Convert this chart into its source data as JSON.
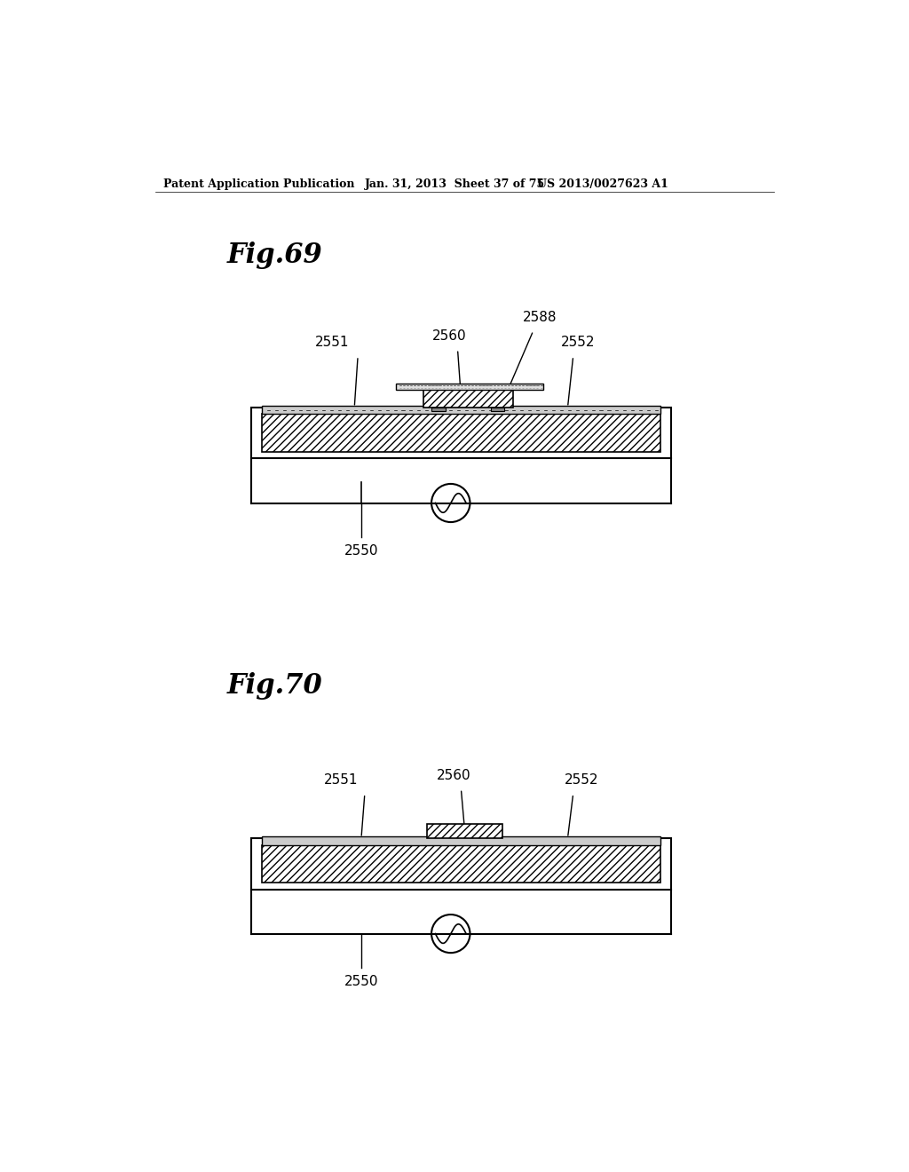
{
  "bg_color": "#ffffff",
  "header_left": "Patent Application Publication",
  "header_mid": "Jan. 31, 2013  Sheet 37 of 75",
  "header_right": "US 2013/0027623 A1",
  "fig69_label": "Fig.69",
  "fig70_label": "Fig.70",
  "label_2550": "2550",
  "label_2551": "2551",
  "label_2552": "2552",
  "label_2560": "2560",
  "label_2588": "2588"
}
